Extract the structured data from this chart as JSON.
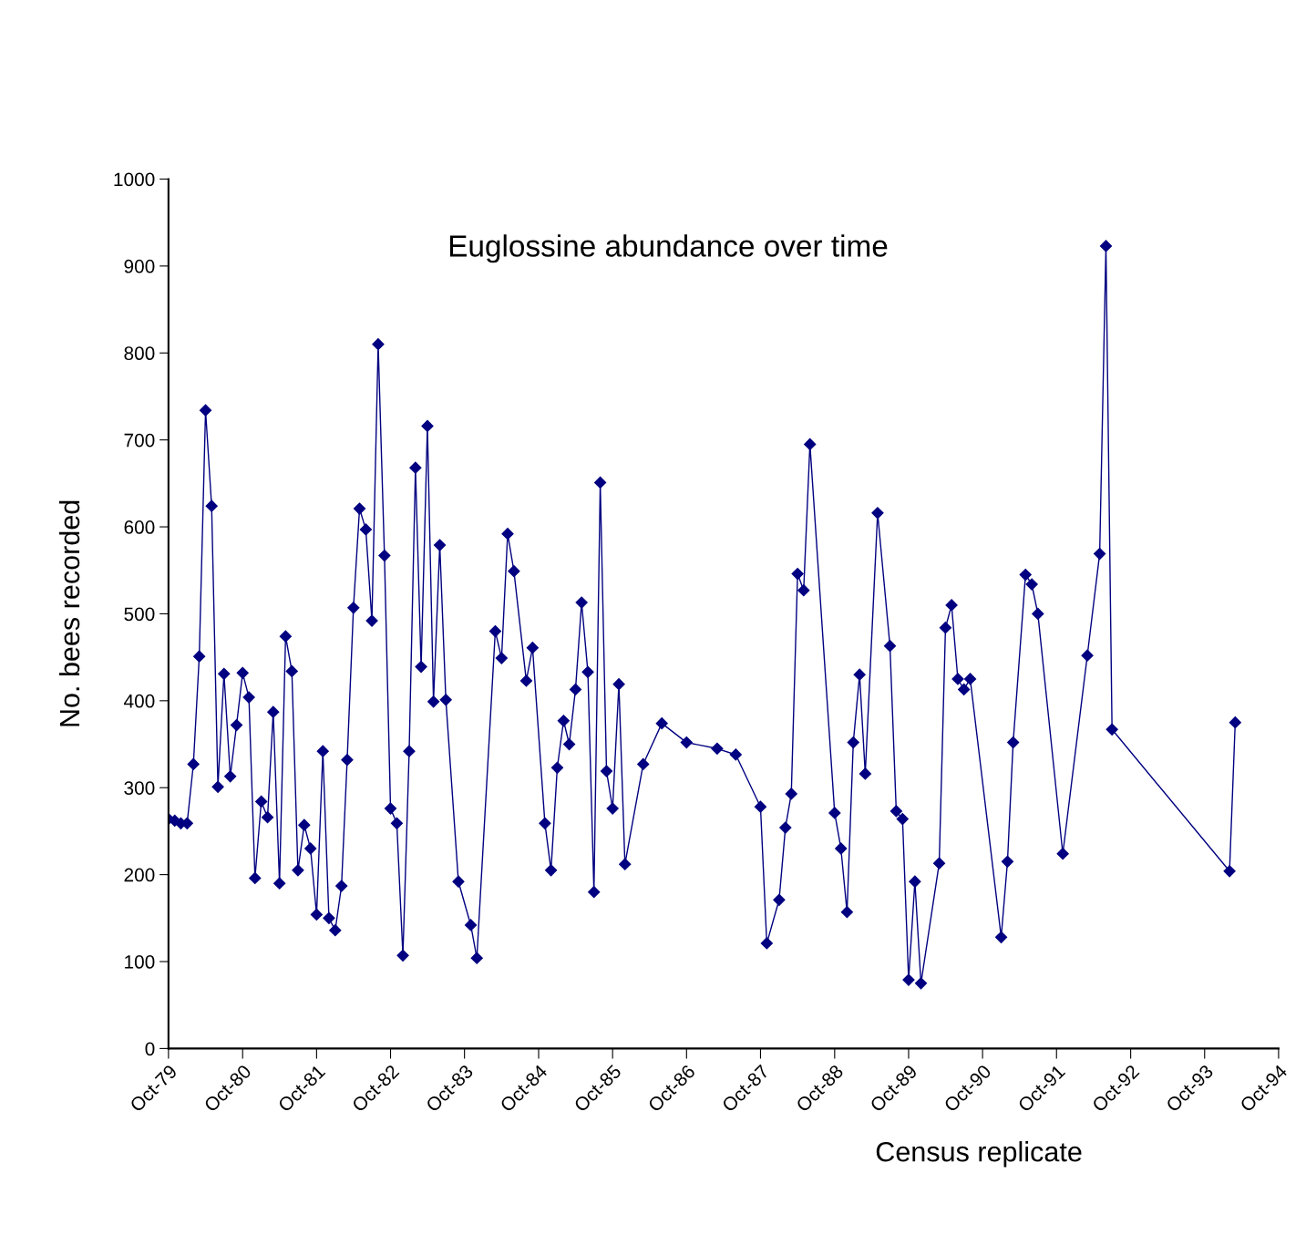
{
  "chart_data": {
    "type": "line",
    "title": "Euglossine abundance over time",
    "xlabel": "Census replicate",
    "ylabel": "No. bees recorded",
    "x": [
      "1979-10",
      "1979-11",
      "1979-12",
      "1980-01",
      "1980-02",
      "1980-03",
      "1980-04",
      "1980-05",
      "1980-06",
      "1980-07",
      "1980-08",
      "1980-09",
      "1980-10",
      "1980-11",
      "1980-12",
      "1981-01",
      "1981-02",
      "1981-03",
      "1981-04",
      "1981-05",
      "1981-06",
      "1981-07",
      "1981-08",
      "1981-09",
      "1981-10",
      "1981-11",
      "1981-12",
      "1982-01",
      "1982-02",
      "1982-03",
      "1982-04",
      "1982-05",
      "1982-06",
      "1982-07",
      "1982-08",
      "1982-09",
      "1982-10",
      "1982-11",
      "1982-12",
      "1983-01",
      "1983-02",
      "1983-03",
      "1983-04",
      "1983-05",
      "1983-06",
      "1983-07",
      "1983-09",
      "1983-11",
      "1983-12",
      "1984-03",
      "1984-04",
      "1984-05",
      "1984-06",
      "1984-08",
      "1984-09",
      "1984-11",
      "1984-12",
      "1985-01",
      "1985-02",
      "1985-03",
      "1985-04",
      "1985-05",
      "1985-06",
      "1985-07",
      "1985-08",
      "1985-09",
      "1985-10",
      "1985-11",
      "1985-12",
      "1986-03",
      "1986-06",
      "1986-10",
      "1987-03",
      "1987-06",
      "1987-10",
      "1987-11",
      "1988-01",
      "1988-02",
      "1988-03",
      "1988-04",
      "1988-05",
      "1988-06",
      "1988-10",
      "1988-11",
      "1988-12",
      "1989-01",
      "1989-02",
      "1989-03",
      "1989-05",
      "1989-07",
      "1989-08",
      "1989-09",
      "1989-10",
      "1989-11",
      "1989-12",
      "1990-03",
      "1990-04",
      "1990-05",
      "1990-06",
      "1990-07",
      "1990-08",
      "1991-01",
      "1991-02",
      "1991-03",
      "1991-05",
      "1991-06",
      "1991-07",
      "1991-11",
      "1992-03",
      "1992-05",
      "1992-06",
      "1992-07",
      "1994-02",
      "1994-03"
    ],
    "series": [
      {
        "color": "#000080",
        "values": [
          264,
          262,
          259,
          259,
          327,
          451,
          734,
          624,
          301,
          431,
          313,
          372,
          432,
          404,
          196,
          284,
          266,
          387,
          190,
          474,
          434,
          205,
          257,
          230,
          154,
          342,
          150,
          136,
          187,
          332,
          507,
          621,
          597,
          492,
          810,
          567,
          276,
          259,
          107,
          342,
          668,
          439,
          716,
          399,
          579,
          401,
          192,
          142,
          104,
          480,
          449,
          592,
          549,
          423,
          461,
          259,
          205,
          323,
          377,
          350,
          413,
          513,
          433,
          180,
          651,
          319,
          276,
          419,
          212,
          327,
          374,
          352,
          345,
          338,
          278,
          121,
          171,
          254,
          293,
          546,
          527,
          695,
          271,
          230,
          157,
          352,
          430,
          316,
          616,
          463,
          273,
          264,
          79,
          192,
          75,
          213,
          484,
          510,
          425,
          413,
          425,
          128,
          215,
          352,
          545,
          534,
          500,
          224,
          452,
          569,
          923,
          367,
          204,
          375
        ]
      }
    ],
    "ylim": [
      0,
      1000
    ],
    "yticks": [
      0,
      100,
      200,
      300,
      400,
      500,
      600,
      700,
      800,
      900,
      1000
    ],
    "xlim": [
      "1979-10",
      "1994-10"
    ],
    "xticks": [
      {
        "value": "1979-10",
        "label": "Oct-79"
      },
      {
        "value": "1980-10",
        "label": "Oct-80"
      },
      {
        "value": "1981-10",
        "label": "Oct-81"
      },
      {
        "value": "1982-10",
        "label": "Oct-82"
      },
      {
        "value": "1983-10",
        "label": "Oct-83"
      },
      {
        "value": "1984-10",
        "label": "Oct-84"
      },
      {
        "value": "1985-10",
        "label": "Oct-85"
      },
      {
        "value": "1986-10",
        "label": "Oct-86"
      },
      {
        "value": "1987-10",
        "label": "Oct-87"
      },
      {
        "value": "1988-10",
        "label": "Oct-88"
      },
      {
        "value": "1989-10",
        "label": "Oct-89"
      },
      {
        "value": "1990-10",
        "label": "Oct-90"
      },
      {
        "value": "1991-10",
        "label": "Oct-91"
      },
      {
        "value": "1992-10",
        "label": "Oct-92"
      },
      {
        "value": "1993-10",
        "label": "Oct-93"
      },
      {
        "value": "1994-10",
        "label": "Oct-94"
      }
    ],
    "marker": "diamond",
    "line_style": "solid"
  }
}
